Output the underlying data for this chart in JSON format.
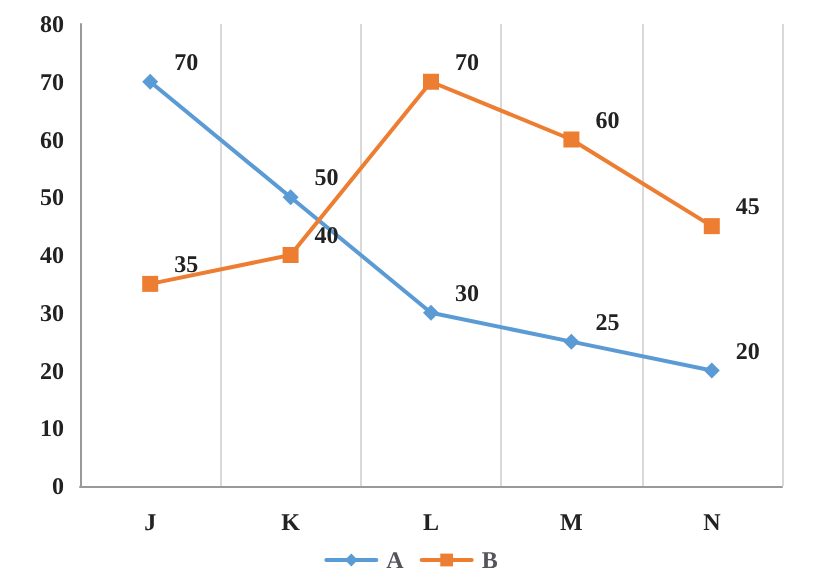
{
  "chart_data": {
    "type": "line",
    "categories": [
      "J",
      "K",
      "L",
      "M",
      "N"
    ],
    "series": [
      {
        "name": "A",
        "color": "#5b9bd5",
        "marker": "diamond",
        "values": [
          70,
          50,
          30,
          25,
          20
        ]
      },
      {
        "name": "B",
        "color": "#ed7d31",
        "marker": "square",
        "values": [
          35,
          40,
          70,
          60,
          45
        ]
      }
    ],
    "ylim": [
      0,
      80
    ],
    "yticks": [
      0,
      10,
      20,
      30,
      40,
      50,
      60,
      70,
      80
    ],
    "grid": "x",
    "legend": "bottom",
    "data_labels": true,
    "line_style": "solid"
  }
}
